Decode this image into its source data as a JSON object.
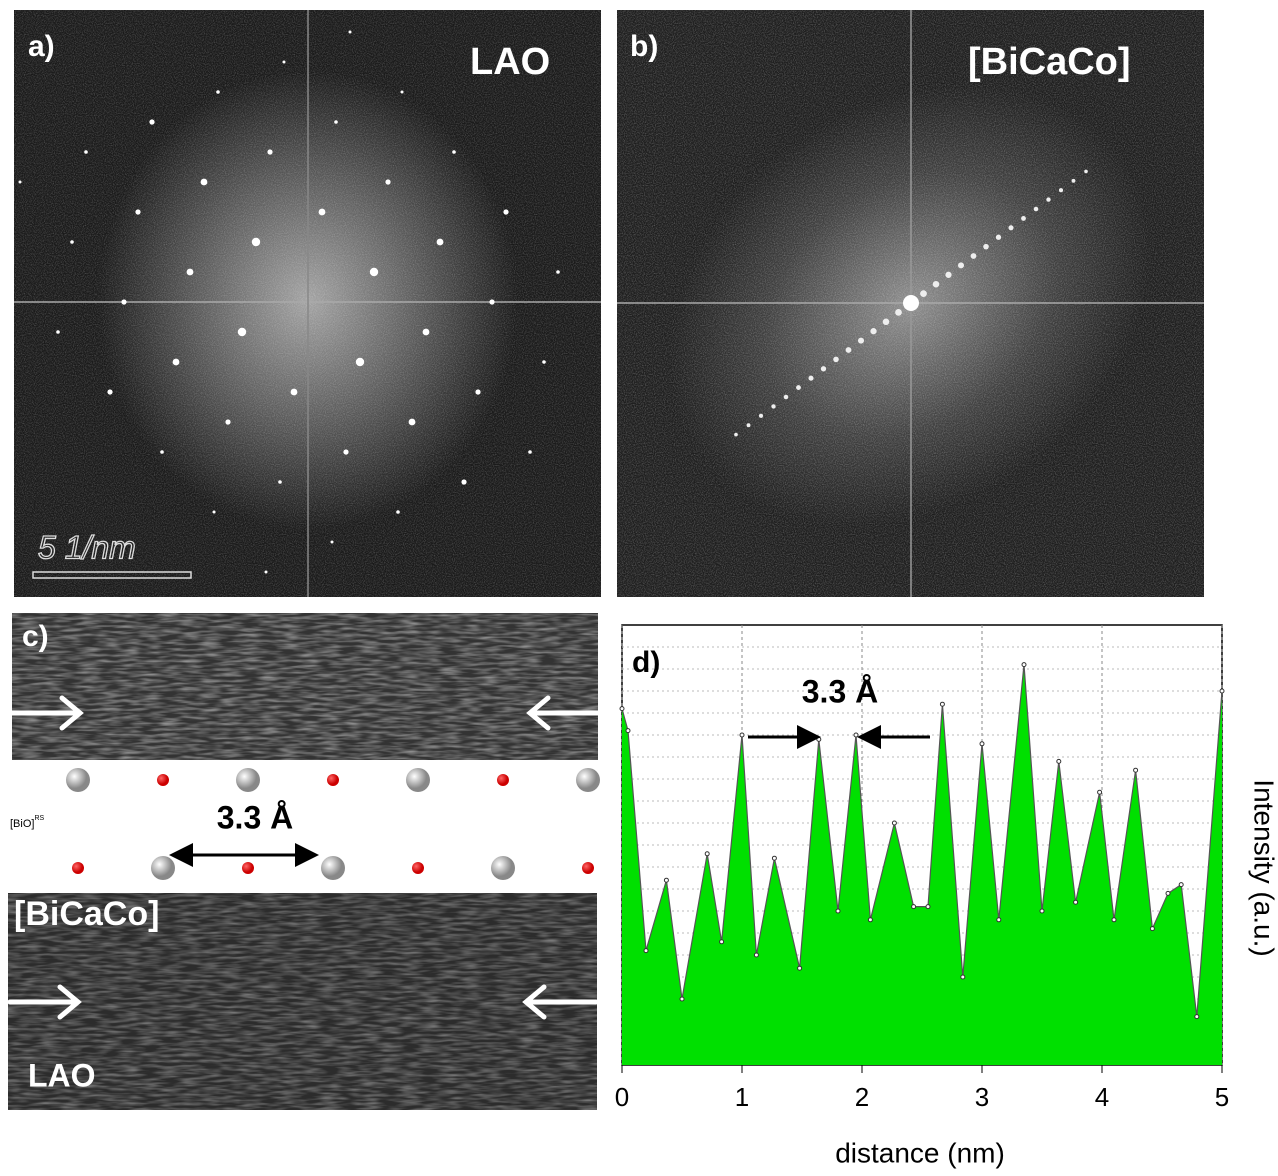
{
  "panels": {
    "a": {
      "label": "a)",
      "material": "LAO",
      "scale_bar": "5 1/nm"
    },
    "b": {
      "label": "b)",
      "material": "[BiCaCo]"
    },
    "c": {
      "label": "c)",
      "layer": "[BiO]",
      "layer_sup": "RS",
      "spacing": "3.3 Å",
      "upper": "[BiCaCo]",
      "lower": "LAO"
    }
  },
  "chart_data": {
    "type": "area",
    "label": "d)",
    "annotation": "3.3 Å",
    "x_label": "distance (nm)",
    "y_label": "Intensity (a.u.)",
    "color": "#00e000",
    "x": [
      0,
      0.05,
      0.2,
      0.37,
      0.5,
      0.71,
      0.83,
      1.0,
      1.12,
      1.27,
      1.48,
      1.64,
      1.8,
      1.95,
      2.07,
      2.27,
      2.43,
      2.55,
      2.67,
      2.84,
      3.0,
      3.14,
      3.35,
      3.5,
      3.64,
      3.78,
      3.98,
      4.1,
      4.28,
      4.42,
      4.55,
      4.66,
      4.79,
      5.0
    ],
    "values": [
      81,
      76,
      26,
      42,
      15,
      48,
      28,
      75,
      25,
      47,
      22,
      74,
      35,
      75,
      33,
      55,
      36,
      36,
      82,
      20,
      73,
      33,
      91,
      35,
      69,
      37,
      62,
      33,
      67,
      31,
      39,
      41,
      11,
      85
    ],
    "xlim": [
      0,
      5
    ],
    "xticks": [
      0,
      1,
      2,
      3,
      4,
      5
    ],
    "ylim": [
      0,
      100
    ],
    "grid": true
  }
}
